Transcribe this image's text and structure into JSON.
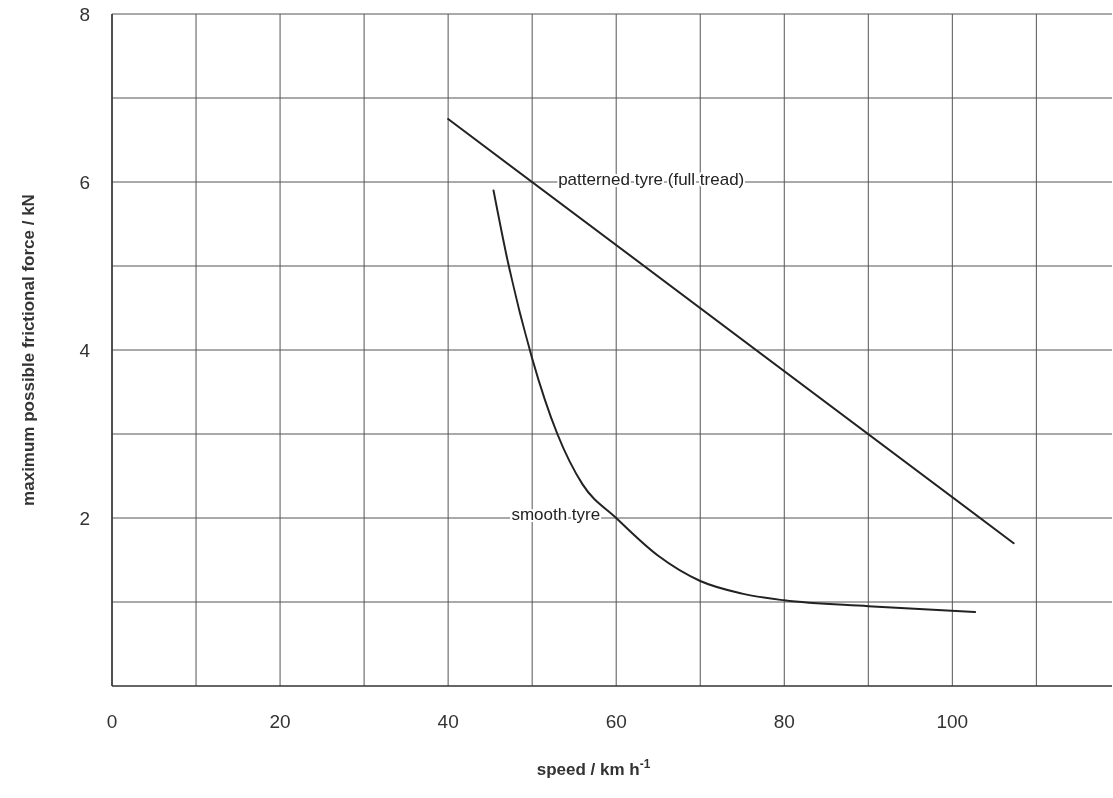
{
  "chart_data": {
    "type": "line",
    "xlabel": "speed / km h$^{-1}$",
    "ylabel": "maximum possible frictional force / kN",
    "xlim": [
      0,
      119
    ],
    "ylim": [
      0,
      8
    ],
    "xticks": [
      0,
      {
        "value": 10,
        "label": null
      },
      20,
      {
        "value": 30,
        "label": null
      },
      40,
      {
        "value": 50,
        "label": null
      },
      60,
      {
        "value": 70,
        "label": null
      },
      80,
      {
        "value": 90,
        "label": null
      },
      100,
      {
        "value": 110,
        "label": null
      }
    ],
    "yticks": [
      {
        "value": 1,
        "label": null
      },
      2,
      {
        "value": 3,
        "label": null
      },
      4,
      {
        "value": 5,
        "label": null
      },
      6,
      {
        "value": 7,
        "label": null
      },
      8
    ],
    "grid": true,
    "marker": "none",
    "line_style": "solid",
    "series": [
      {
        "name": "patterned tyre (full tread)",
        "color": "#222222",
        "x": [
          40,
          107.3
        ],
        "values": [
          6.75,
          1.7
        ]
      },
      {
        "name": "smooth tyre",
        "color": "#222222",
        "x": [
          45.4,
          47,
          50,
          53,
          56,
          60,
          65,
          70,
          75,
          80,
          90,
          102.7
        ],
        "values": [
          5.9,
          5.1,
          3.9,
          3.0,
          2.4,
          2.0,
          1.55,
          1.25,
          1.1,
          1.02,
          0.95,
          0.88
        ]
      }
    ]
  }
}
